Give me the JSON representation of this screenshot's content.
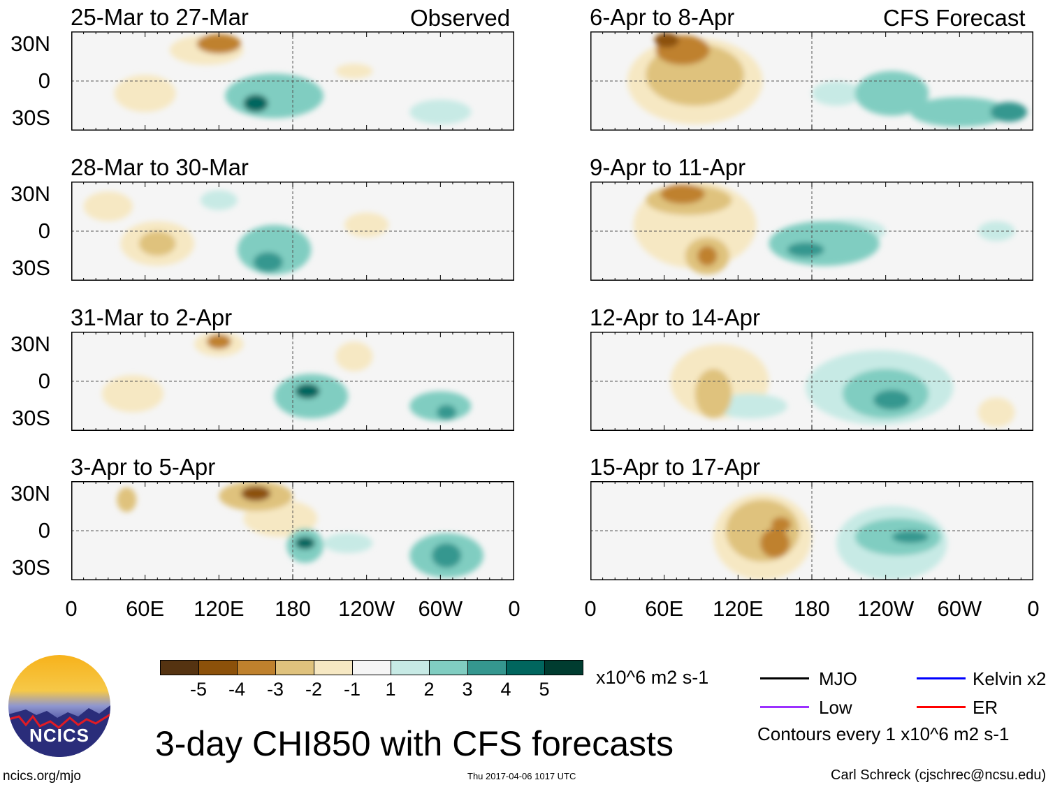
{
  "header": {
    "observed_label": "Observed",
    "forecast_label": "CFS Forecast"
  },
  "lat_labels": [
    "30N",
    "0",
    "30S"
  ],
  "lon_labels": [
    "0",
    "60E",
    "120E",
    "180",
    "120W",
    "60W",
    "0"
  ],
  "colorbar": {
    "colors": [
      "#553311",
      "#8c510a",
      "#bf812d",
      "#dfc27d",
      "#f6e8c3",
      "#f5f5f5",
      "#c7eae5",
      "#80cdc1",
      "#35978f",
      "#01665e",
      "#003c30"
    ],
    "labels": [
      "-5",
      "-4",
      "-3",
      "-2",
      "-1",
      "1",
      "2",
      "3",
      "4",
      "5"
    ],
    "units": "x10^6 m2 s-1"
  },
  "legend": {
    "items": [
      {
        "label": "MJO",
        "color": "#000000"
      },
      {
        "label": "Kelvin x2",
        "color": "#0000ff"
      },
      {
        "label": "Low",
        "color": "#9b30ff"
      },
      {
        "label": "ER",
        "color": "#ff0000"
      }
    ],
    "note": "Contours every 1 x10^6 m2 s-1"
  },
  "footer": {
    "title": "3-day CHI850 with CFS forecasts",
    "url": "ncics.org/mjo",
    "timestamp": "Thu 2017-04-06 1017 UTC",
    "author": "Carl Schreck (cjschrec@ncsu.edu)",
    "logo_text": "NCICS"
  },
  "chart_data": [
    {
      "title": "25-Mar to 27-Mar",
      "column": "observed",
      "type": "heatmap",
      "anomalies": [
        [
          120,
          30,
          -3,
          18,
          8
        ],
        [
          110,
          25,
          -1,
          30,
          12
        ],
        [
          60,
          -10,
          -1,
          25,
          15
        ],
        [
          165,
          -12,
          2,
          40,
          18
        ],
        [
          150,
          -18,
          4,
          10,
          7
        ],
        [
          300,
          -25,
          1,
          25,
          10
        ],
        [
          230,
          8,
          -1,
          15,
          6
        ]
      ]
    },
    {
      "title": "6-Apr to 8-Apr",
      "column": "forecast",
      "type": "heatmap",
      "anomalies": [
        [
          85,
          0,
          -1,
          55,
          35
        ],
        [
          85,
          5,
          -2,
          40,
          25
        ],
        [
          75,
          25,
          -3,
          22,
          12
        ],
        [
          62,
          33,
          -4,
          10,
          6
        ],
        [
          300,
          -25,
          2,
          40,
          12
        ],
        [
          245,
          -10,
          2,
          30,
          18
        ],
        [
          340,
          -25,
          3,
          15,
          8
        ],
        [
          200,
          -10,
          1,
          20,
          10
        ]
      ]
    },
    {
      "title": "28-Mar to 30-Mar",
      "column": "observed",
      "type": "heatmap",
      "anomalies": [
        [
          70,
          -10,
          -1,
          30,
          18
        ],
        [
          70,
          -10,
          -2,
          15,
          10
        ],
        [
          165,
          -15,
          2,
          30,
          20
        ],
        [
          160,
          -25,
          3,
          12,
          8
        ],
        [
          240,
          5,
          -1,
          18,
          10
        ],
        [
          120,
          25,
          1,
          15,
          8
        ],
        [
          30,
          20,
          -1,
          20,
          12
        ]
      ]
    },
    {
      "title": "9-Apr to 11-Apr",
      "column": "forecast",
      "type": "heatmap",
      "anomalies": [
        [
          85,
          5,
          -1,
          50,
          35
        ],
        [
          80,
          25,
          -2,
          35,
          12
        ],
        [
          75,
          30,
          -3,
          18,
          8
        ],
        [
          95,
          -20,
          -2,
          18,
          15
        ],
        [
          95,
          -20,
          -3,
          8,
          8
        ],
        [
          190,
          -10,
          2,
          45,
          18
        ],
        [
          175,
          -15,
          3,
          15,
          6
        ],
        [
          210,
          0,
          1,
          30,
          10
        ],
        [
          330,
          0,
          1,
          15,
          8
        ]
      ]
    },
    {
      "title": "31-Mar to 2-Apr",
      "column": "observed",
      "type": "heatmap",
      "anomalies": [
        [
          120,
          32,
          -3,
          10,
          6
        ],
        [
          120,
          30,
          -1,
          20,
          10
        ],
        [
          50,
          -10,
          -1,
          25,
          15
        ],
        [
          195,
          -12,
          2,
          30,
          18
        ],
        [
          192,
          -8,
          4,
          10,
          6
        ],
        [
          230,
          20,
          -1,
          15,
          12
        ],
        [
          300,
          -20,
          2,
          25,
          12
        ],
        [
          305,
          -25,
          3,
          8,
          6
        ]
      ]
    },
    {
      "title": "12-Apr to 14-Apr",
      "column": "forecast",
      "type": "heatmap",
      "anomalies": [
        [
          105,
          0,
          -1,
          40,
          30
        ],
        [
          100,
          -10,
          -2,
          15,
          20
        ],
        [
          235,
          -5,
          1,
          60,
          30
        ],
        [
          240,
          -10,
          2,
          35,
          20
        ],
        [
          245,
          -15,
          3,
          15,
          8
        ],
        [
          330,
          -25,
          -1,
          15,
          12
        ],
        [
          130,
          -20,
          1,
          30,
          10
        ]
      ]
    },
    {
      "title": "3-Apr to 5-Apr",
      "column": "observed",
      "type": "heatmap",
      "anomalies": [
        [
          150,
          28,
          -2,
          30,
          12
        ],
        [
          150,
          30,
          -4,
          12,
          6
        ],
        [
          170,
          10,
          -1,
          30,
          15
        ],
        [
          45,
          25,
          -2,
          8,
          10
        ],
        [
          190,
          -12,
          2,
          15,
          14
        ],
        [
          190,
          -10,
          4,
          8,
          5
        ],
        [
          305,
          -20,
          2,
          30,
          18
        ],
        [
          305,
          -20,
          3,
          12,
          10
        ],
        [
          225,
          -10,
          1,
          20,
          8
        ]
      ]
    },
    {
      "title": "15-Apr to 17-Apr",
      "column": "forecast",
      "type": "heatmap",
      "anomalies": [
        [
          140,
          -5,
          -1,
          40,
          35
        ],
        [
          140,
          0,
          -2,
          30,
          25
        ],
        [
          150,
          -10,
          -3,
          12,
          12
        ],
        [
          155,
          5,
          -3,
          8,
          6
        ],
        [
          245,
          -10,
          1,
          45,
          30
        ],
        [
          250,
          -5,
          2,
          35,
          15
        ],
        [
          260,
          -5,
          3,
          15,
          5
        ]
      ]
    }
  ]
}
